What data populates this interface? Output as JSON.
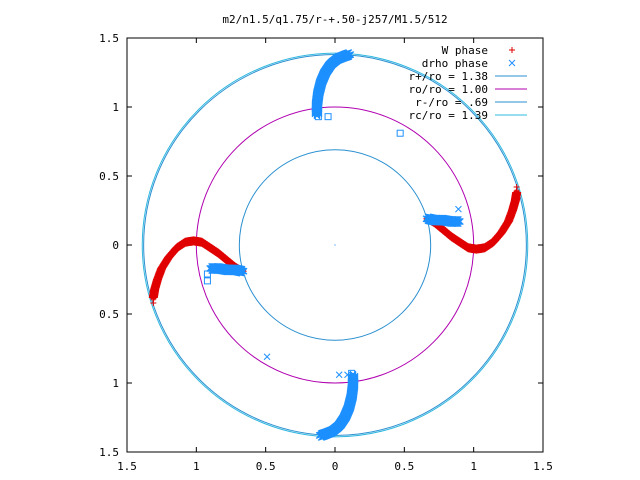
{
  "chart_data": {
    "type": "scatter",
    "title": "m2/n1.5/q1.75/r-+.50-j257/M1.5/512",
    "xlabel": "",
    "ylabel": "",
    "xlim": [
      -1.5,
      1.5
    ],
    "ylim": [
      -1.5,
      1.5
    ],
    "x_ticks": [
      {
        "value": -1.5,
        "label": "1.5"
      },
      {
        "value": -1,
        "label": "1"
      },
      {
        "value": -0.5,
        "label": "0.5"
      },
      {
        "value": 0,
        "label": "0"
      },
      {
        "value": 0.5,
        "label": "0.5"
      },
      {
        "value": 1,
        "label": "1"
      },
      {
        "value": 1.5,
        "label": "1.5"
      }
    ],
    "y_ticks": [
      {
        "value": 1.5,
        "label": "1.5"
      },
      {
        "value": 1,
        "label": "1"
      },
      {
        "value": 0.5,
        "label": "0.5"
      },
      {
        "value": 0,
        "label": "0"
      },
      {
        "value": -0.5,
        "label": "0.5"
      },
      {
        "value": -1,
        "label": "1"
      },
      {
        "value": -1.5,
        "label": "1.5"
      }
    ],
    "grid": false,
    "legend_position": "top-right",
    "legend": [
      {
        "label": "W phase",
        "marker": "+",
        "color": "#e00000"
      },
      {
        "label": "drho phase",
        "marker": "x",
        "color": "#1e90ff"
      },
      {
        "label": "r+/ro = 1.38",
        "line": true,
        "color": "#2a8fd0"
      },
      {
        "label": "ro/ro = 1.00",
        "line": true,
        "color": "#b000b0"
      },
      {
        "label": "r-/ro = .69",
        "line": true,
        "color": "#2a8fd0"
      },
      {
        "label": "rc/ro = 1.39",
        "line": true,
        "color": "#30b8e0"
      }
    ],
    "circles": [
      {
        "name": "r+/ro",
        "r": 1.38,
        "color": "#2a8fd0"
      },
      {
        "name": "ro/ro",
        "r": 1.0,
        "color": "#b000b0"
      },
      {
        "name": "r-/ro",
        "r": 0.69,
        "color": "#2a8fd0"
      },
      {
        "name": "rc/ro",
        "r": 1.39,
        "color": "#30b8e0"
      }
    ],
    "w_phase_arms": [
      [
        [
          0.67,
          0.19
        ],
        [
          0.72,
          0.16
        ],
        [
          0.78,
          0.11
        ],
        [
          0.84,
          0.06
        ],
        [
          0.9,
          0.02
        ],
        [
          0.96,
          -0.02
        ],
        [
          1.02,
          -0.03
        ],
        [
          1.08,
          -0.02
        ],
        [
          1.14,
          0.02
        ],
        [
          1.2,
          0.09
        ],
        [
          1.25,
          0.17
        ],
        [
          1.28,
          0.25
        ],
        [
          1.3,
          0.32
        ],
        [
          1.31,
          0.38
        ]
      ],
      [
        [
          -0.67,
          -0.19
        ],
        [
          -0.72,
          -0.16
        ],
        [
          -0.78,
          -0.11
        ],
        [
          -0.84,
          -0.06
        ],
        [
          -0.9,
          -0.02
        ],
        [
          -0.96,
          0.02
        ],
        [
          -1.02,
          0.03
        ],
        [
          -1.08,
          0.02
        ],
        [
          -1.14,
          -0.02
        ],
        [
          -1.2,
          -0.09
        ],
        [
          -1.25,
          -0.17
        ],
        [
          -1.28,
          -0.25
        ],
        [
          -1.3,
          -0.32
        ],
        [
          -1.31,
          -0.38
        ]
      ]
    ],
    "drho_phase_arms": [
      [
        [
          0.67,
          0.19
        ],
        [
          0.72,
          0.18
        ],
        [
          0.78,
          0.18
        ],
        [
          0.84,
          0.17
        ],
        [
          0.89,
          0.17
        ]
      ],
      [
        [
          -0.67,
          -0.19
        ],
        [
          -0.72,
          -0.18
        ],
        [
          -0.78,
          -0.18
        ],
        [
          -0.84,
          -0.17
        ],
        [
          -0.89,
          -0.17
        ]
      ],
      [
        [
          -0.13,
          0.95
        ],
        [
          -0.13,
          1.02
        ],
        [
          -0.12,
          1.1
        ],
        [
          -0.1,
          1.18
        ],
        [
          -0.07,
          1.25
        ],
        [
          -0.03,
          1.31
        ],
        [
          0.02,
          1.35
        ],
        [
          0.07,
          1.37
        ],
        [
          0.1,
          1.38
        ]
      ],
      [
        [
          0.13,
          -0.95
        ],
        [
          0.13,
          -1.02
        ],
        [
          0.12,
          -1.1
        ],
        [
          0.1,
          -1.18
        ],
        [
          0.07,
          -1.25
        ],
        [
          0.03,
          -1.31
        ],
        [
          -0.02,
          -1.35
        ],
        [
          -0.07,
          -1.37
        ],
        [
          -0.1,
          -1.38
        ]
      ]
    ],
    "w_phase_points": [
      [
        1.31,
        0.42
      ],
      [
        -1.31,
        -0.42
      ]
    ],
    "drho_phase_points": [
      [
        0.89,
        0.26
      ],
      [
        -0.49,
        -0.81
      ],
      [
        0.03,
        -0.94
      ],
      [
        0.09,
        -0.94
      ]
    ],
    "open_square_points": [
      [
        -0.12,
        0.93
      ],
      [
        -0.05,
        0.93
      ],
      [
        0.47,
        0.81
      ],
      [
        -0.92,
        -0.26
      ],
      [
        -0.92,
        -0.21
      ],
      [
        0.12,
        -0.93
      ]
    ]
  }
}
